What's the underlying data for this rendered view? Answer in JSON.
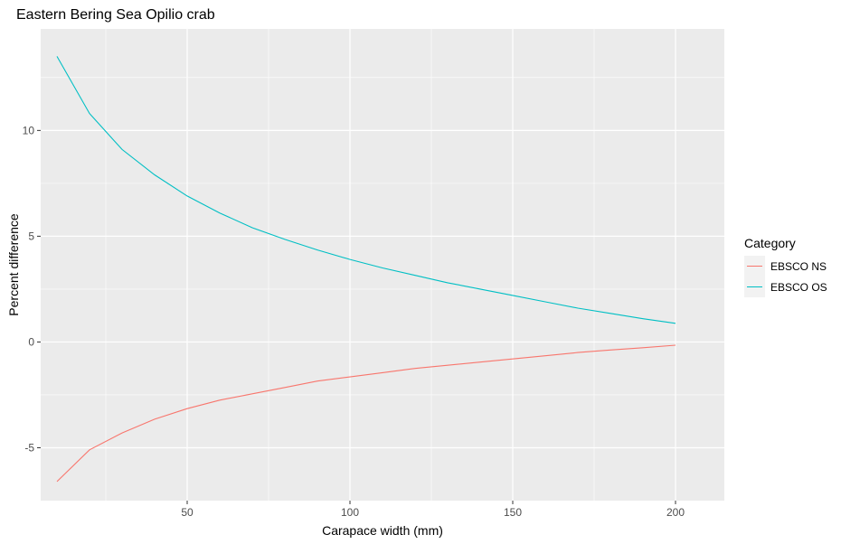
{
  "chart_data": {
    "type": "line",
    "title": "Eastern Bering Sea Opilio crab",
    "xlabel": "Carapace width (mm)",
    "ylabel": "Percent difference",
    "xlim": [
      5,
      215
    ],
    "ylim": [
      -7.5,
      14.8
    ],
    "x_ticks": [
      50,
      100,
      150,
      200
    ],
    "x_minor": [
      25,
      75,
      125,
      175
    ],
    "y_ticks": [
      -5,
      0,
      5,
      10
    ],
    "y_minor": [
      -2.5,
      2.5,
      7.5,
      12.5
    ],
    "x_tick_labels": [
      "50",
      "100",
      "150",
      "200"
    ],
    "y_tick_labels": [
      "-5",
      "0",
      "5",
      "10"
    ],
    "grid": true,
    "panel_background": "#ebebeb",
    "grid_color": "#ffffff",
    "legend": {
      "title": "Category",
      "placement": "right",
      "entries": [
        "EBSCO NS",
        "EBSCO OS"
      ]
    },
    "x": [
      10,
      20,
      30,
      40,
      50,
      60,
      70,
      80,
      90,
      100,
      110,
      120,
      130,
      140,
      150,
      160,
      170,
      180,
      190,
      200
    ],
    "series": [
      {
        "name": "EBSCO NS",
        "color": "#f8766d",
        "values": [
          -6.6,
          -5.1,
          -4.3,
          -3.65,
          -3.15,
          -2.75,
          -2.45,
          -2.15,
          -1.85,
          -1.65,
          -1.45,
          -1.25,
          -1.1,
          -0.95,
          -0.8,
          -0.65,
          -0.5,
          -0.38,
          -0.27,
          -0.15
        ]
      },
      {
        "name": "EBSCO OS",
        "color": "#00bfc4",
        "values": [
          13.5,
          10.8,
          9.1,
          7.9,
          6.9,
          6.1,
          5.4,
          4.85,
          4.35,
          3.9,
          3.5,
          3.15,
          2.8,
          2.5,
          2.2,
          1.9,
          1.6,
          1.35,
          1.1,
          0.88
        ]
      }
    ]
  }
}
